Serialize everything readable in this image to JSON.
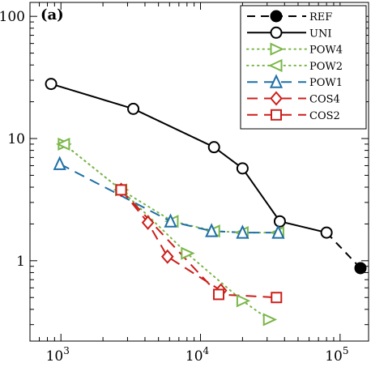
{
  "chart_data": {
    "type": "line",
    "panel_label": "(a)",
    "x_scale": "log",
    "y_scale": "log",
    "xlim": [
      600,
      160000
    ],
    "ylim": [
      0.22,
      130
    ],
    "x_ticks": [
      {
        "value": 1000,
        "base": "10",
        "exp": "3"
      },
      {
        "value": 10000,
        "base": "10",
        "exp": "4"
      },
      {
        "value": 100000,
        "base": "10",
        "exp": "5"
      }
    ],
    "y_ticks": [
      {
        "value": 1,
        "label": "1"
      },
      {
        "value": 10,
        "label": "10"
      },
      {
        "value": 100,
        "label": "100"
      }
    ],
    "grid": false,
    "legend_position": "top-right",
    "series": [
      {
        "name": "REF",
        "color": "#000000",
        "marker": "filled-circle",
        "dash": "10,7",
        "dotted": false,
        "points": [
          [
            80000,
            1.7
          ],
          [
            140000,
            0.87
          ]
        ],
        "show_markers": [
          false,
          true
        ]
      },
      {
        "name": "UNI",
        "color": "#000000",
        "marker": "circle",
        "dash": "",
        "dotted": false,
        "points": [
          [
            850,
            28
          ],
          [
            3300,
            17.5
          ],
          [
            12500,
            8.5
          ],
          [
            20000,
            5.7
          ],
          [
            37000,
            2.1
          ],
          [
            80000,
            1.7
          ]
        ]
      },
      {
        "name": "POW4",
        "color": "#7ab648",
        "marker": "triangle-right",
        "dash": "1.5,5",
        "dotted": true,
        "points": [
          [
            1050,
            9
          ],
          [
            2700,
            3.8
          ],
          [
            8000,
            1.15
          ],
          [
            20000,
            0.47
          ],
          [
            31000,
            0.33
          ]
        ]
      },
      {
        "name": "POW2",
        "color": "#7ab648",
        "marker": "triangle-left",
        "dash": "1.5,5",
        "dotted": true,
        "points": [
          [
            1050,
            9
          ],
          [
            2700,
            3.8
          ],
          [
            6300,
            2.1
          ],
          [
            12500,
            1.75
          ],
          [
            20000,
            1.7
          ],
          [
            36000,
            1.7
          ]
        ]
      },
      {
        "name": "POW1",
        "color": "#1f6fa6",
        "marker": "triangle-up",
        "dash": "13,8",
        "dotted": false,
        "points": [
          [
            980,
            6.2
          ],
          [
            6100,
            2.1
          ],
          [
            12000,
            1.75
          ],
          [
            20000,
            1.7
          ],
          [
            36000,
            1.7
          ]
        ]
      },
      {
        "name": "COS4",
        "color": "#cc1f1a",
        "marker": "diamond",
        "dash": "13,8",
        "dotted": false,
        "points": [
          [
            2700,
            3.8
          ],
          [
            4200,
            2.05
          ],
          [
            5800,
            1.08
          ],
          [
            14000,
            0.57
          ]
        ]
      },
      {
        "name": "COS2",
        "color": "#cc1f1a",
        "marker": "square",
        "dash": "13,8",
        "dotted": false,
        "points": [
          [
            2700,
            3.8
          ],
          [
            13500,
            0.53
          ],
          [
            35000,
            0.5
          ]
        ]
      }
    ]
  }
}
